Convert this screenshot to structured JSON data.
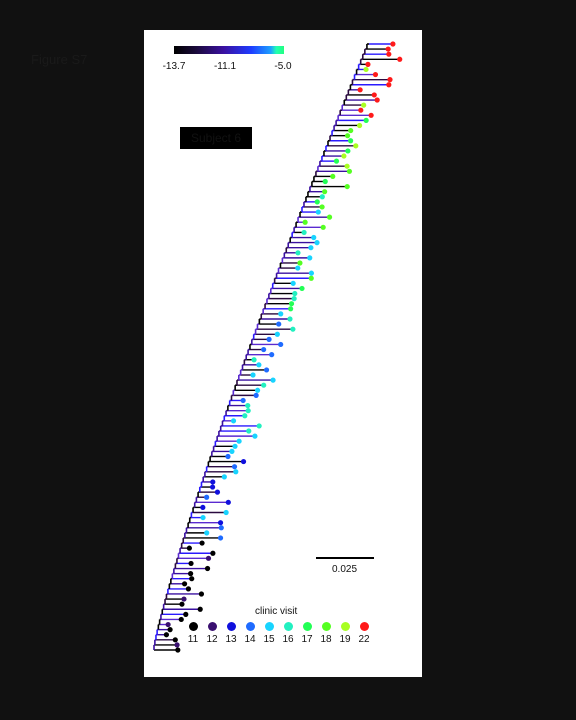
{
  "figure_label": "Figure S7",
  "subject_label": "Subject 6",
  "colorbar": {
    "ticks": [
      "-13.7",
      "-11.1",
      "-5.0"
    ],
    "colors": [
      "#000000",
      "#3a10a0",
      "#1e3cff",
      "#22ff80"
    ]
  },
  "scale_bar": {
    "label": "0.025"
  },
  "legend": {
    "title": "clinic visit",
    "items": [
      {
        "label": "11",
        "color": "#000000"
      },
      {
        "label": "12",
        "color": "#3a1070"
      },
      {
        "label": "13",
        "color": "#1010dd"
      },
      {
        "label": "14",
        "color": "#1f6bff"
      },
      {
        "label": "15",
        "color": "#18d4ff"
      },
      {
        "label": "16",
        "color": "#22f0c0"
      },
      {
        "label": "17",
        "color": "#22ff55"
      },
      {
        "label": "18",
        "color": "#55ff22"
      },
      {
        "label": "19",
        "color": "#a8ff22"
      },
      {
        "label": "22",
        "color": "#ff1a1a"
      }
    ]
  }
}
